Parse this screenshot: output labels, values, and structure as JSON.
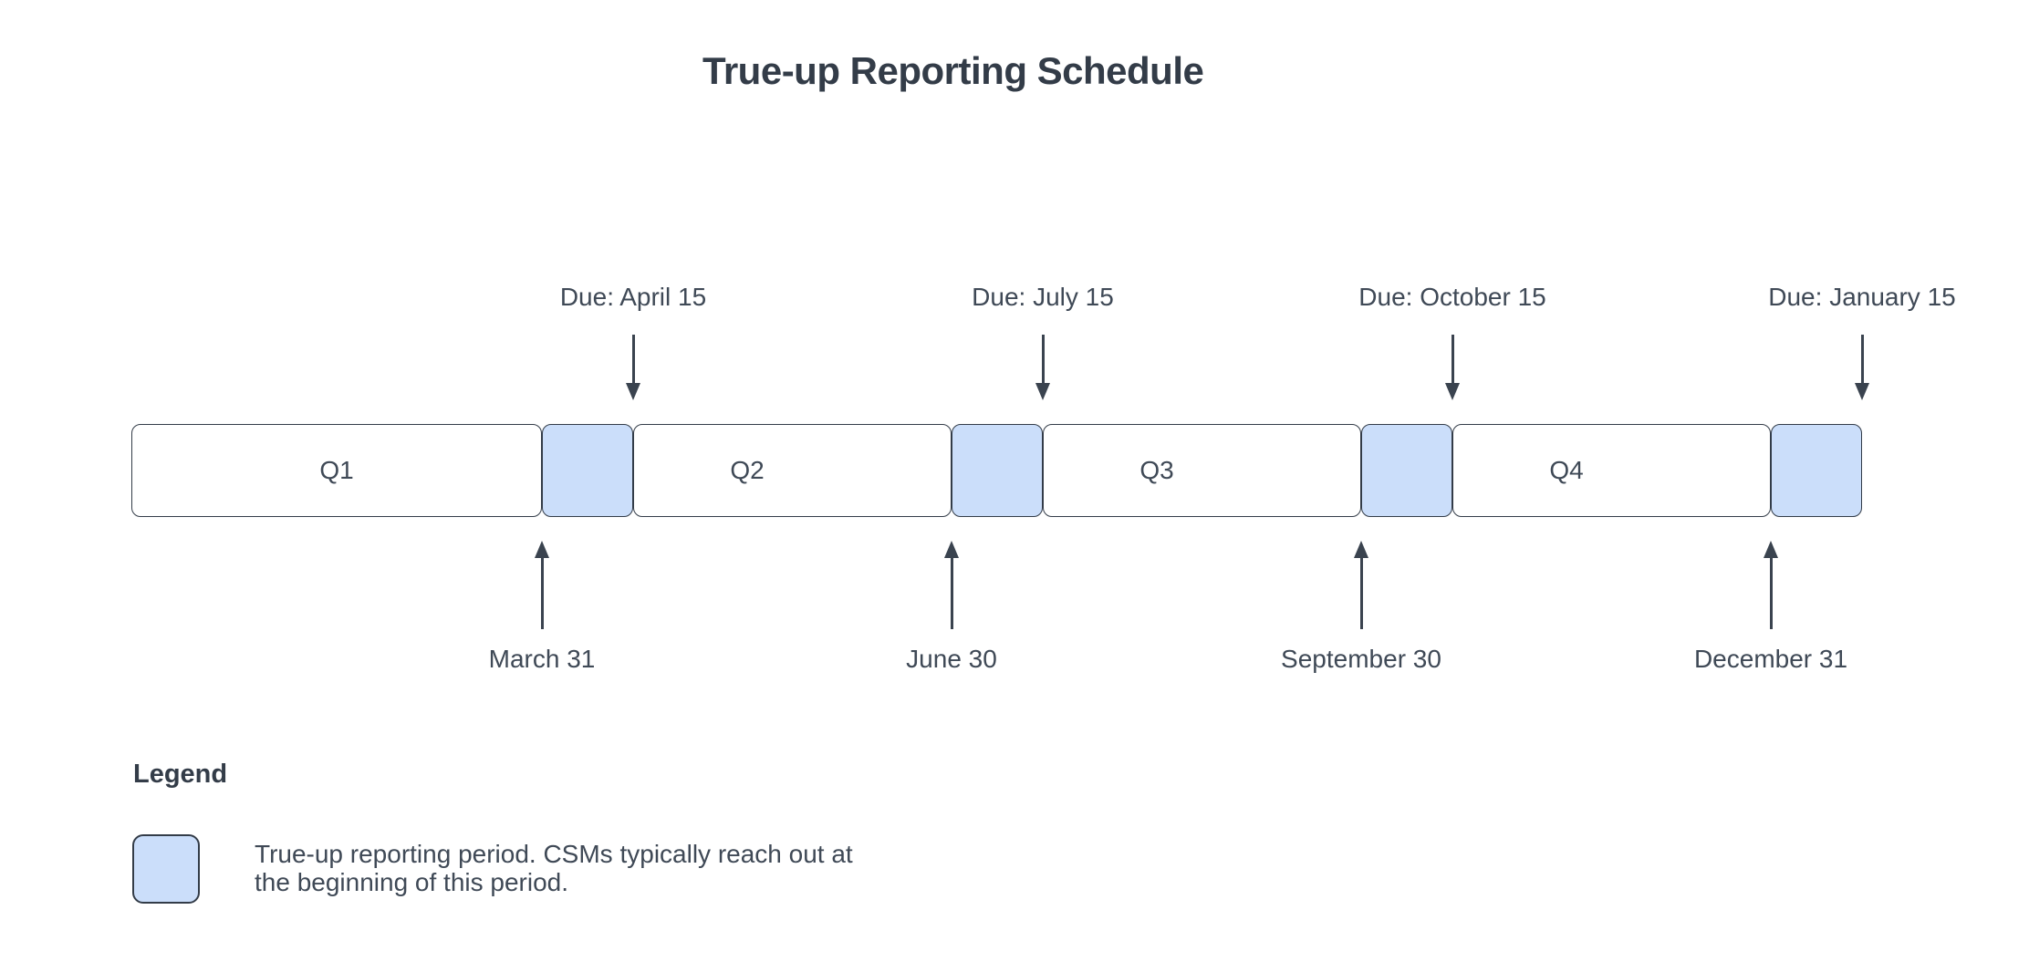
{
  "title": "True-up Reporting Schedule",
  "colors": {
    "background": "#ffffff",
    "highlight_fill": "#cbdefa",
    "stroke": "#333c48",
    "text": "#3f4956"
  },
  "timeline": {
    "quarters": [
      {
        "label": "Q1",
        "quarter_end": {
          "label": "March 31"
        },
        "due": {
          "label": "Due: April 15"
        }
      },
      {
        "label": "Q2",
        "quarter_end": {
          "label": "June 30"
        },
        "due": {
          "label": "Due: July 15"
        }
      },
      {
        "label": "Q3",
        "quarter_end": {
          "label": "September 30"
        },
        "due": {
          "label": "Due: October 15"
        }
      },
      {
        "label": "Q4",
        "quarter_end": {
          "label": "December 31"
        },
        "due": {
          "label": "Due: January 15"
        }
      }
    ]
  },
  "legend": {
    "heading": "Legend",
    "items": [
      {
        "swatch_color": "#cbdefa",
        "text": "True-up reporting period. CSMs typically reach out at the beginning of this period."
      }
    ]
  }
}
